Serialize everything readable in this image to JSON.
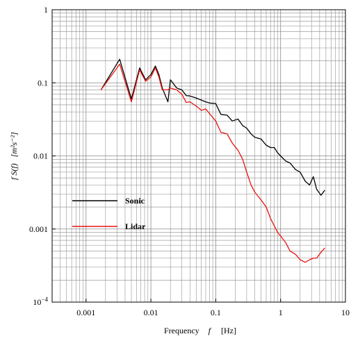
{
  "chart_data": {
    "type": "line",
    "xscale": "log",
    "yscale": "log",
    "xlim": [
      0.0003,
      10
    ],
    "ylim": [
      0.0001,
      1
    ],
    "grid": true,
    "legend_position": "lower-left",
    "xlabel": {
      "prefix": "Frequency",
      "symbol": "f",
      "unit": "[Hz]"
    },
    "ylabel": {
      "text": "f S(f)",
      "unit": "[m²s⁻²]"
    },
    "x_tick_labels": [
      {
        "value": 0.001,
        "text": "0.001"
      },
      {
        "value": 0.01,
        "text": "0.01"
      },
      {
        "value": 0.1,
        "text": "0.1"
      },
      {
        "value": 1,
        "text": "1"
      },
      {
        "value": 10,
        "text": "10"
      }
    ],
    "y_tick_labels": [
      {
        "value": 0.0001,
        "base": "10",
        "exp": "−4"
      },
      {
        "value": 0.001,
        "text": "0.001"
      },
      {
        "value": 0.01,
        "text": "0.01"
      },
      {
        "value": 0.1,
        "text": "0.1"
      },
      {
        "value": 1,
        "text": "1"
      }
    ],
    "series": [
      {
        "name": "Sonic",
        "color": "#000000",
        "x": [
          0.0017,
          0.0033,
          0.005,
          0.0067,
          0.0083,
          0.01,
          0.0117,
          0.0133,
          0.015,
          0.0183,
          0.02,
          0.025,
          0.03,
          0.035,
          0.04,
          0.05,
          0.06,
          0.07,
          0.08,
          0.1,
          0.12,
          0.15,
          0.18,
          0.22,
          0.26,
          0.3,
          0.35,
          0.4,
          0.5,
          0.6,
          0.7,
          0.8,
          0.9,
          1.0,
          1.2,
          1.4,
          1.7,
          2.0,
          2.4,
          2.8,
          3.2,
          3.6,
          4.2,
          4.8
        ],
        "y": [
          0.08,
          0.21,
          0.06,
          0.16,
          0.11,
          0.13,
          0.17,
          0.13,
          0.085,
          0.055,
          0.11,
          0.085,
          0.08,
          0.067,
          0.066,
          0.062,
          0.058,
          0.055,
          0.053,
          0.052,
          0.037,
          0.036,
          0.03,
          0.032,
          0.026,
          0.024,
          0.02,
          0.018,
          0.017,
          0.014,
          0.013,
          0.013,
          0.011,
          0.01,
          0.0085,
          0.008,
          0.0065,
          0.006,
          0.0045,
          0.004,
          0.0052,
          0.0035,
          0.0029,
          0.0034
        ]
      },
      {
        "name": "Lidar",
        "color": "#e8130f",
        "x": [
          0.0017,
          0.0033,
          0.005,
          0.0067,
          0.0083,
          0.01,
          0.0117,
          0.0133,
          0.015,
          0.0183,
          0.02,
          0.025,
          0.03,
          0.035,
          0.04,
          0.05,
          0.06,
          0.07,
          0.08,
          0.1,
          0.12,
          0.15,
          0.18,
          0.22,
          0.26,
          0.3,
          0.35,
          0.4,
          0.5,
          0.6,
          0.7,
          0.8,
          0.9,
          1.0,
          1.2,
          1.4,
          1.7,
          2.0,
          2.4,
          2.8,
          3.2,
          3.6,
          4.2,
          4.8
        ],
        "y": [
          0.08,
          0.18,
          0.055,
          0.15,
          0.105,
          0.12,
          0.16,
          0.12,
          0.08,
          0.08,
          0.085,
          0.08,
          0.07,
          0.054,
          0.055,
          0.048,
          0.042,
          0.044,
          0.038,
          0.03,
          0.021,
          0.02,
          0.015,
          0.012,
          0.009,
          0.006,
          0.004,
          0.0032,
          0.0025,
          0.002,
          0.0014,
          0.0011,
          0.0009,
          0.0008,
          0.00065,
          0.0005,
          0.00045,
          0.00038,
          0.00035,
          0.00038,
          0.0004,
          0.0004,
          0.00048,
          0.00055
        ]
      }
    ]
  }
}
